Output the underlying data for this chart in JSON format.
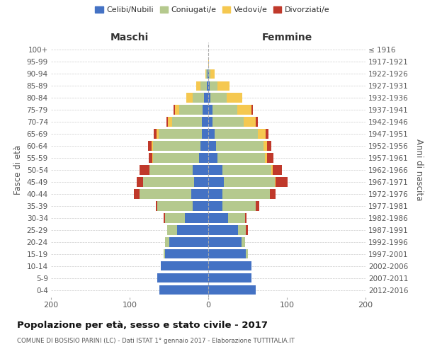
{
  "age_groups": [
    "0-4",
    "5-9",
    "10-14",
    "15-19",
    "20-24",
    "25-29",
    "30-34",
    "35-39",
    "40-44",
    "45-49",
    "50-54",
    "55-59",
    "60-64",
    "65-69",
    "70-74",
    "75-79",
    "80-84",
    "85-89",
    "90-94",
    "95-99",
    "100+"
  ],
  "birth_years": [
    "2012-2016",
    "2007-2011",
    "2002-2006",
    "1997-2001",
    "1992-1996",
    "1987-1991",
    "1982-1986",
    "1977-1981",
    "1972-1976",
    "1967-1971",
    "1962-1966",
    "1957-1961",
    "1952-1956",
    "1947-1951",
    "1942-1946",
    "1937-1941",
    "1932-1936",
    "1927-1931",
    "1922-1926",
    "1917-1921",
    "≤ 1916"
  ],
  "maschi": {
    "celibi": [
      62,
      65,
      60,
      55,
      50,
      40,
      30,
      20,
      22,
      18,
      20,
      12,
      10,
      8,
      8,
      7,
      5,
      2,
      1,
      0,
      0
    ],
    "coniugati": [
      0,
      0,
      0,
      2,
      5,
      12,
      25,
      45,
      65,
      65,
      55,
      58,
      60,
      55,
      38,
      30,
      15,
      8,
      2,
      0,
      0
    ],
    "vedovi": [
      0,
      0,
      0,
      0,
      0,
      0,
      0,
      0,
      0,
      0,
      0,
      1,
      2,
      3,
      5,
      5,
      8,
      5,
      1,
      0,
      0
    ],
    "divorziati": [
      0,
      0,
      0,
      0,
      0,
      0,
      2,
      2,
      8,
      8,
      12,
      5,
      5,
      3,
      2,
      2,
      0,
      0,
      0,
      0,
      0
    ]
  },
  "femmine": {
    "nubili": [
      60,
      55,
      55,
      48,
      42,
      38,
      25,
      18,
      18,
      20,
      18,
      12,
      10,
      8,
      5,
      5,
      3,
      2,
      1,
      0,
      0
    ],
    "coniugate": [
      0,
      0,
      0,
      2,
      5,
      10,
      22,
      42,
      60,
      65,
      62,
      60,
      60,
      55,
      40,
      32,
      20,
      10,
      2,
      0,
      0
    ],
    "vedove": [
      0,
      0,
      0,
      0,
      0,
      0,
      0,
      0,
      0,
      1,
      2,
      3,
      5,
      10,
      15,
      18,
      20,
      15,
      5,
      1,
      0
    ],
    "divorziate": [
      0,
      0,
      0,
      0,
      0,
      2,
      2,
      5,
      8,
      15,
      12,
      8,
      5,
      4,
      3,
      2,
      0,
      0,
      0,
      0,
      0
    ]
  },
  "colors": {
    "celibi_nubili": "#4472c4",
    "coniugati": "#b5c98e",
    "vedovi": "#f5c850",
    "divorziati": "#c0392b"
  },
  "xlim": 200,
  "title": "Popolazione per età, sesso e stato civile - 2017",
  "subtitle": "COMUNE DI BOSISIO PARINI (LC) - Dati ISTAT 1° gennaio 2017 - Elaborazione TUTTITALIA.IT",
  "ylabel_left": "Fasce di età",
  "ylabel_right": "Anni di nascita",
  "xlabel_maschi": "Maschi",
  "xlabel_femmine": "Femmine",
  "legend_labels": [
    "Celibi/Nubili",
    "Coniugati/e",
    "Vedovi/e",
    "Divorziati/e"
  ],
  "background_color": "#ffffff",
  "grid_color": "#cccccc"
}
